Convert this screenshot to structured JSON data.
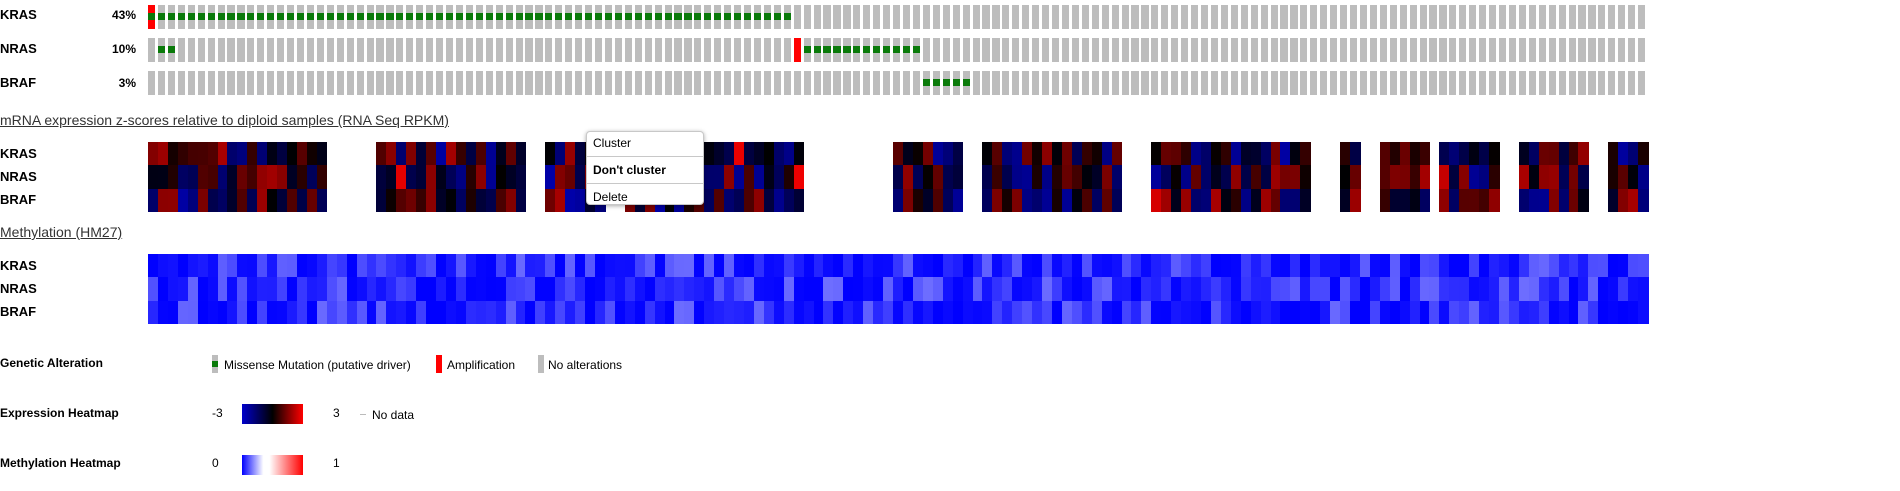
{
  "genes": [
    {
      "name": "KRAS",
      "pct": "43%"
    },
    {
      "name": "NRAS",
      "pct": "10%"
    },
    {
      "name": "BRAF",
      "pct": "3%"
    }
  ],
  "sections": {
    "mrna": "mRNA expression z-scores relative to diploid samples (RNA Seq RPKM)",
    "methylation": "Methylation (HM27)"
  },
  "context_menu": {
    "items": [
      "Cluster",
      "Don't cluster",
      "Delete"
    ]
  },
  "legend": {
    "genetic": {
      "title": "Genetic Alteration",
      "items": [
        "Missense Mutation (putative driver)",
        "Amplification",
        "No alterations"
      ]
    },
    "expression": {
      "title": "Expression Heatmap",
      "min": "-3",
      "max": "3",
      "nodata": "No data"
    },
    "methylation": {
      "title": "Methylation Heatmap",
      "min": "0",
      "max": "1"
    }
  },
  "colors": {
    "mutation": "#0a7a0a",
    "amplification": "#ff0000",
    "no_alteration": "#bdbdbd",
    "exp_low": "#0000cc",
    "exp_high": "#ff0000",
    "meth_high": "#1010ff"
  },
  "oncoprint": {
    "sample_count": 151,
    "KRAS": {
      "amp": [
        0
      ],
      "mut_range": [
        0,
        64
      ]
    },
    "NRAS": {
      "mut": [
        1,
        2
      ],
      "amp": [
        65
      ],
      "mut_range2": [
        66,
        77
      ]
    },
    "BRAF": {
      "mut_range": [
        78,
        82
      ]
    }
  }
}
